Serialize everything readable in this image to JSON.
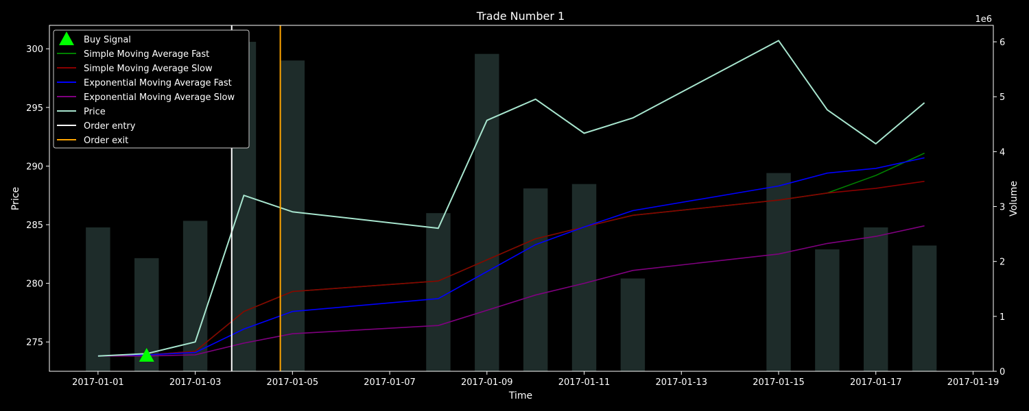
{
  "chart_data": {
    "type": "line",
    "title": "Trade Number 1",
    "xlabel": "Time",
    "ylabel": "Price",
    "y2label": "Volume",
    "y2_offset_label": "1e6",
    "xlim": [
      "2016-12-31T00:00",
      "2017-01-19T10:00"
    ],
    "ylim": [
      272.5,
      302
    ],
    "y2lim": [
      0,
      6.3
    ],
    "x_ticks": [
      "2017-01-01",
      "2017-01-03",
      "2017-01-05",
      "2017-01-07",
      "2017-01-09",
      "2017-01-11",
      "2017-01-13",
      "2017-01-15",
      "2017-01-17",
      "2017-01-19"
    ],
    "y_ticks": [
      275,
      280,
      285,
      290,
      295,
      300
    ],
    "y2_ticks": [
      0,
      1,
      2,
      3,
      4,
      5,
      6
    ],
    "grid": false,
    "legend_position": "top-left",
    "dates": [
      "2017-01-01",
      "2017-01-02",
      "2017-01-03",
      "2017-01-04",
      "2017-01-05",
      "2017-01-08",
      "2017-01-09",
      "2017-01-10",
      "2017-01-11",
      "2017-01-12",
      "2017-01-15",
      "2017-01-16",
      "2017-01-17",
      "2017-01-18"
    ],
    "price": [
      273.8,
      274.0,
      275.0,
      287.5,
      286.1,
      284.7,
      293.9,
      295.7,
      292.8,
      294.1,
      300.7,
      294.8,
      291.9,
      295.4
    ],
    "volume": [
      2.62,
      2.06,
      2.74,
      6.0,
      5.66,
      2.88,
      5.78,
      3.33,
      3.41,
      1.69,
      3.61,
      2.22,
      2.62,
      2.29
    ],
    "volume_color": "#1e2c2a",
    "series": [
      {
        "name": "Simple Moving Average Fast",
        "color": "#008000",
        "values": [
          273.8,
          273.9,
          274.2,
          277.6,
          279.3,
          280.2,
          282.0,
          283.8,
          284.8,
          285.8,
          287.1,
          287.7,
          289.2,
          291.1
        ]
      },
      {
        "name": "Simple Moving Average Slow",
        "color": "#8b0000",
        "values": [
          273.8,
          273.9,
          274.2,
          277.6,
          279.3,
          280.2,
          282.0,
          283.8,
          284.8,
          285.8,
          287.1,
          287.7,
          288.1,
          288.7
        ]
      },
      {
        "name": "Exponential Moving Average Fast",
        "color": "#0000ff",
        "values": [
          273.8,
          273.9,
          274.1,
          276.1,
          277.6,
          278.7,
          281.0,
          283.3,
          284.8,
          286.2,
          288.3,
          289.4,
          289.8,
          290.7
        ]
      },
      {
        "name": "Exponential Moving Average Slow",
        "color": "#800080",
        "values": [
          273.8,
          273.8,
          273.9,
          274.9,
          275.7,
          276.4,
          277.7,
          279.0,
          280.0,
          281.1,
          282.5,
          283.4,
          284.0,
          284.9
        ]
      },
      {
        "name": "Price",
        "color": "#a8e6cf",
        "values": [
          273.8,
          274.0,
          275.0,
          287.5,
          286.1,
          284.7,
          293.9,
          295.7,
          292.8,
          294.1,
          300.7,
          294.8,
          291.9,
          295.4
        ]
      }
    ],
    "buy_signal": {
      "name": "Buy Signal",
      "date": "2017-01-02",
      "price": 273.9,
      "color": "#00ff00"
    },
    "order_entry": {
      "name": "Order entry",
      "date": "2017-01-03T18:00",
      "color": "#ffffff"
    },
    "order_exit": {
      "name": "Order exit",
      "date": "2017-01-04T18:00",
      "color": "#ffa500"
    },
    "legend": [
      {
        "label": "Buy Signal",
        "color": "#00ff00",
        "kind": "marker"
      },
      {
        "label": "Simple Moving Average Fast",
        "color": "#008000",
        "kind": "line"
      },
      {
        "label": "Simple Moving Average Slow",
        "color": "#8b0000",
        "kind": "line"
      },
      {
        "label": "Exponential Moving Average Fast",
        "color": "#0000ff",
        "kind": "line"
      },
      {
        "label": "Exponential Moving Average Slow",
        "color": "#800080",
        "kind": "line"
      },
      {
        "label": "Price",
        "color": "#a8e6cf",
        "kind": "line"
      },
      {
        "label": "Order entry",
        "color": "#ffffff",
        "kind": "line"
      },
      {
        "label": "Order exit",
        "color": "#ffa500",
        "kind": "line"
      }
    ]
  }
}
